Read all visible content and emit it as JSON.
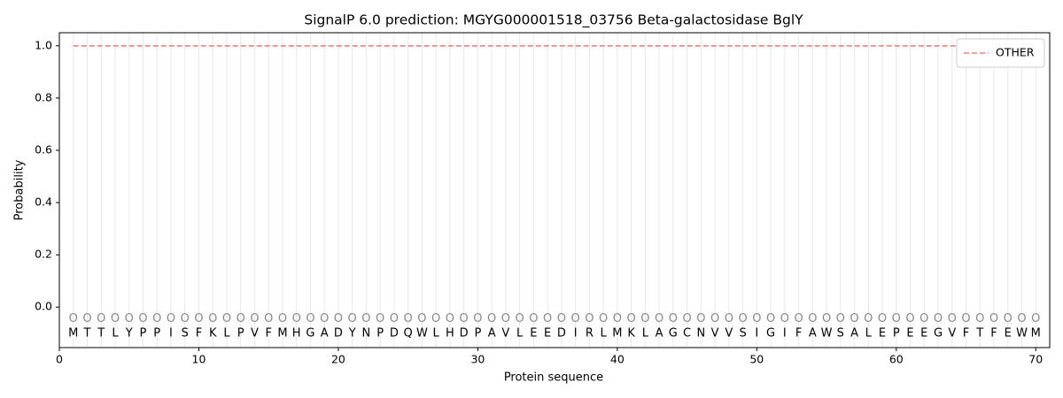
{
  "chart_data": {
    "type": "line",
    "title": "SignalP 6.0 prediction: MGYG000001518_03756 Beta-galactosidase BglY",
    "x_label": "Protein sequence",
    "y_label": "Probability",
    "xlim": [
      0,
      71
    ],
    "ylim": [
      -0.155,
      1.05
    ],
    "xticks": [
      0,
      10,
      20,
      30,
      40,
      50,
      60,
      70
    ],
    "yticks": [
      {
        "value": 0,
        "label": "0.0"
      },
      {
        "value": 0.2,
        "label": "0.2"
      },
      {
        "value": 0.4,
        "label": "0.4"
      },
      {
        "value": 0.6,
        "label": "0.6"
      },
      {
        "value": 0.8,
        "label": "0.8"
      },
      {
        "value": 1,
        "label": "1.0"
      }
    ],
    "legend_position": "upper right",
    "x": [
      1,
      2,
      3,
      4,
      5,
      6,
      7,
      8,
      9,
      10,
      11,
      12,
      13,
      14,
      15,
      16,
      17,
      18,
      19,
      20,
      21,
      22,
      23,
      24,
      25,
      26,
      27,
      28,
      29,
      30,
      31,
      32,
      33,
      34,
      35,
      36,
      37,
      38,
      39,
      40,
      41,
      42,
      43,
      44,
      45,
      46,
      47,
      48,
      49,
      50,
      51,
      52,
      53,
      54,
      55,
      56,
      57,
      58,
      59,
      60,
      61,
      62,
      63,
      64,
      65,
      66,
      67,
      68,
      69,
      70
    ],
    "sequence": [
      "M",
      "T",
      "T",
      "L",
      "Y",
      "P",
      "P",
      "I",
      "S",
      "F",
      "K",
      "L",
      "P",
      "V",
      "F",
      "M",
      "H",
      "G",
      "A",
      "D",
      "Y",
      "N",
      "P",
      "D",
      "Q",
      "W",
      "L",
      "H",
      "D",
      "P",
      "A",
      "V",
      "L",
      "E",
      "E",
      "D",
      "I",
      "R",
      "L",
      "M",
      "K",
      "L",
      "A",
      "G",
      "C",
      "N",
      "V",
      "V",
      "S",
      "I",
      "G",
      "I",
      "F",
      "A",
      "W",
      "S",
      "A",
      "L",
      "E",
      "P",
      "E",
      "E",
      "G",
      "V",
      "F",
      "T",
      "F",
      "E",
      "W",
      "M"
    ],
    "predicted_labels": [
      "O",
      "O",
      "O",
      "O",
      "O",
      "O",
      "O",
      "O",
      "O",
      "O",
      "O",
      "O",
      "O",
      "O",
      "O",
      "O",
      "O",
      "O",
      "O",
      "O",
      "O",
      "O",
      "O",
      "O",
      "O",
      "O",
      "O",
      "O",
      "O",
      "O",
      "O",
      "O",
      "O",
      "O",
      "O",
      "O",
      "O",
      "O",
      "O",
      "O",
      "O",
      "O",
      "O",
      "O",
      "O",
      "O",
      "O",
      "O",
      "O",
      "O",
      "O",
      "O",
      "O",
      "O",
      "O",
      "O",
      "O",
      "O",
      "O",
      "O",
      "O",
      "O",
      "O",
      "O",
      "O",
      "O",
      "O",
      "O",
      "O",
      "O"
    ],
    "series": [
      {
        "name": "OTHER",
        "color": "#f08080",
        "dashed": true,
        "values": [
          1,
          1,
          1,
          1,
          1,
          1,
          1,
          1,
          1,
          1,
          1,
          1,
          1,
          1,
          1,
          1,
          1,
          1,
          1,
          1,
          1,
          1,
          1,
          1,
          1,
          1,
          1,
          1,
          1,
          1,
          1,
          1,
          1,
          1,
          1,
          1,
          1,
          1,
          1,
          1,
          1,
          1,
          1,
          1,
          1,
          1,
          1,
          1,
          1,
          1,
          1,
          1,
          1,
          1,
          1,
          1,
          1,
          1,
          1,
          1,
          1,
          1,
          1,
          1,
          1,
          1,
          1,
          1,
          1,
          1
        ]
      }
    ]
  }
}
